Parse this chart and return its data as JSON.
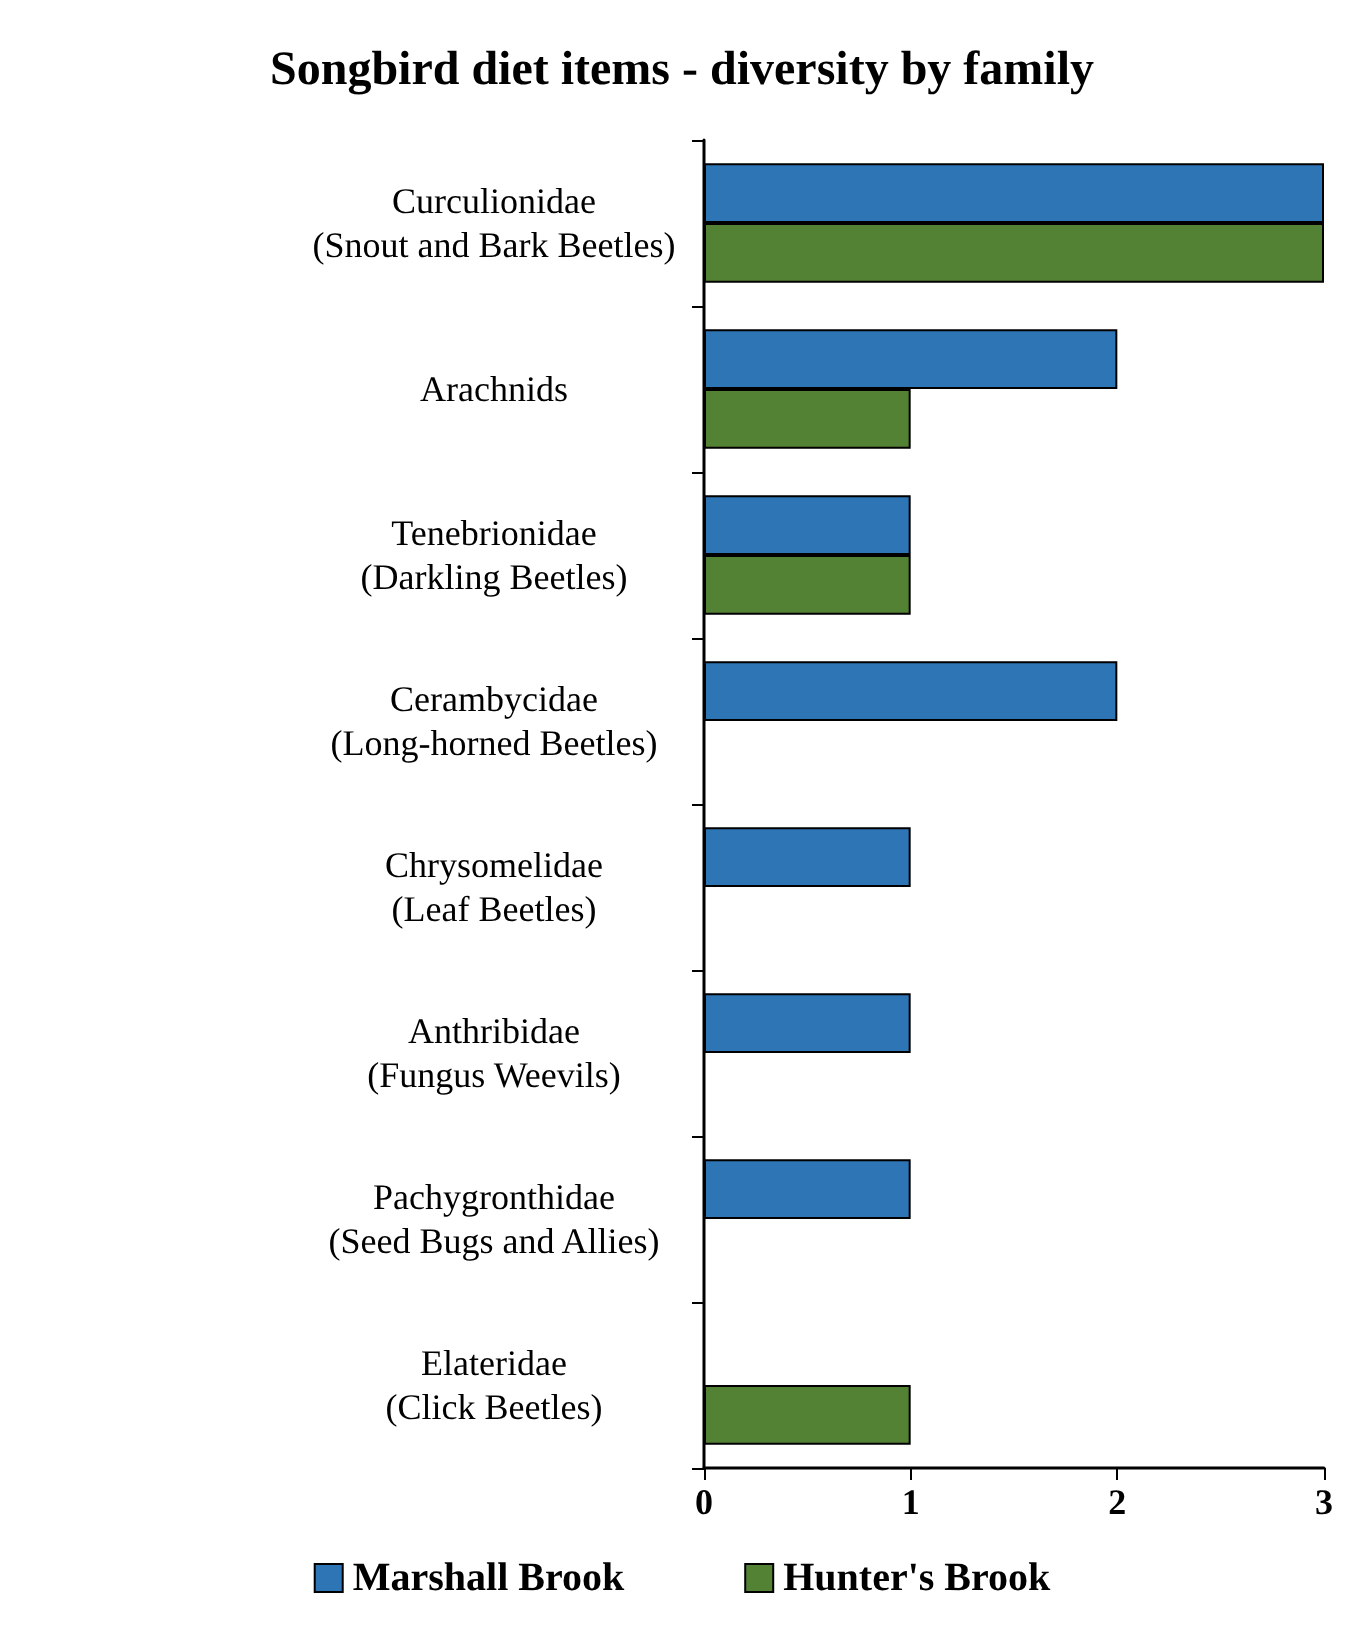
{
  "chart_data": {
    "type": "bar",
    "orientation": "horizontal",
    "title": "Songbird diet items - diversity by family",
    "categories": [
      "Curculionidae\n(Snout and Bark Beetles)",
      "Arachnids",
      "Tenebrionidae\n(Darkling Beetles)",
      "Cerambycidae\n(Long-horned Beetles)",
      "Chrysomelidae\n(Leaf Beetles)",
      "Anthribidae\n(Fungus Weevils)",
      "Pachygronthidae\n(Seed Bugs and Allies)",
      "Elateridae\n(Click Beetles)"
    ],
    "series": [
      {
        "name": "Marshall Brook",
        "color": "#2e75b6",
        "values": [
          3,
          2,
          1,
          2,
          1,
          1,
          1,
          null
        ]
      },
      {
        "name": "Hunter's Brook",
        "color": "#548235",
        "values": [
          3,
          1,
          1,
          null,
          null,
          null,
          null,
          1
        ]
      }
    ],
    "xlim": [
      0,
      3
    ],
    "xticks": [
      0,
      1,
      2,
      3
    ],
    "grid": false,
    "legend": "bottom"
  }
}
